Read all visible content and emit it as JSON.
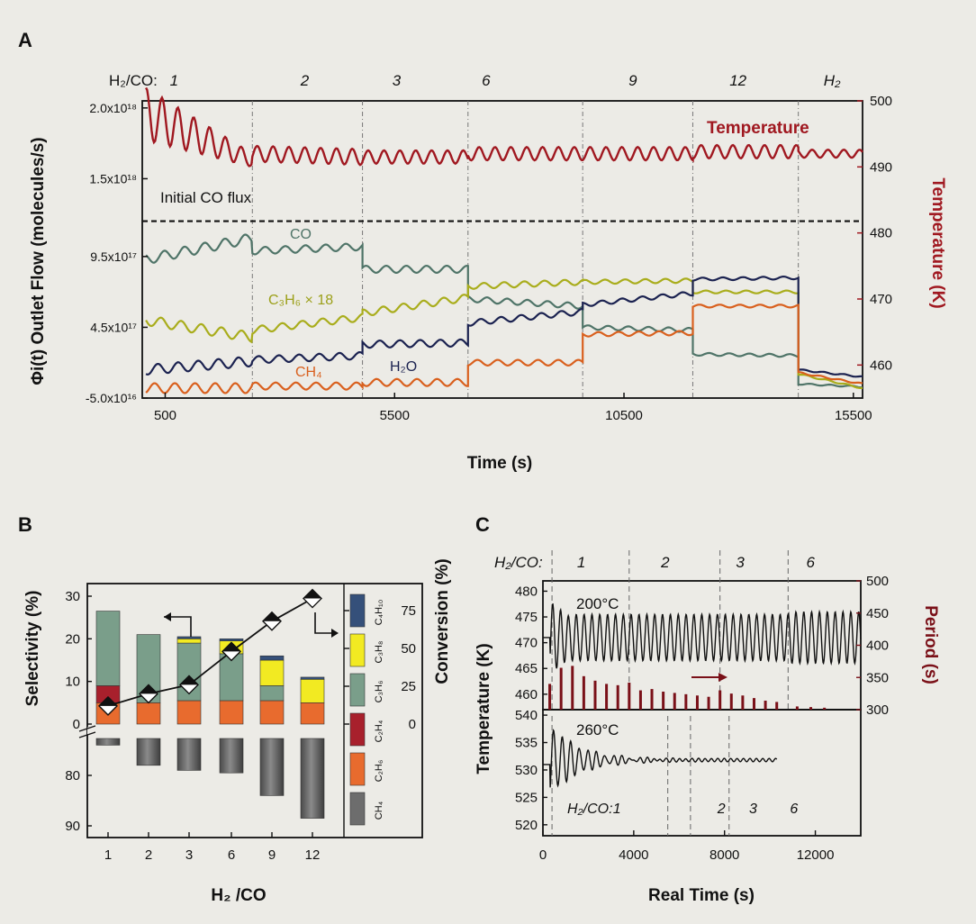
{
  "panel_labels": {
    "a": "A",
    "b": "B",
    "c": "C"
  },
  "chart_data": [
    {
      "panel": "A",
      "type": "line",
      "xlabel": "Time (s)",
      "ylabel": "Φi(t) Outlet  Flow (molecules/s)",
      "y2label": "Temperature (K)",
      "xlim": [
        0,
        15700
      ],
      "ylim": [
        -5e+16,
        2.05e+18
      ],
      "y2lim": [
        455,
        500
      ],
      "x_ticks": [
        "500",
        "5500",
        "10500",
        "15500"
      ],
      "y_ticks": [
        "2.0x10¹⁸",
        "1.5x10¹⁸",
        "9.5x10¹⁷",
        "4.5x10¹⁷",
        "-5.0x10¹⁶"
      ],
      "y2_ticks": [
        "500",
        "490",
        "480",
        "470",
        "460"
      ],
      "ratio_prefix": "H₂/CO:",
      "ratios": [
        "1",
        "2",
        "3",
        "6",
        "9",
        "12",
        "H₂"
      ],
      "ratio_x": [
        600,
        3450,
        5450,
        7400,
        10600,
        12800,
        14850
      ],
      "switch_times": [
        2400,
        4800,
        7100,
        9600,
        12000,
        14300
      ],
      "initial_flux_label": "Initial CO flux",
      "initial_flux_value": 1.2e+18,
      "series": [
        {
          "name": "Temperature",
          "axis": "right",
          "color": "#a01820",
          "segments": [
            [
              0,
              498,
              491
            ],
            [
              2400,
              492,
              491.5
            ],
            [
              4800,
              491.5,
              491.5
            ],
            [
              7100,
              492,
              492
            ],
            [
              9600,
              492,
              492
            ],
            [
              12000,
              492.3,
              492.3
            ],
            [
              14300,
              492,
              492
            ]
          ]
        },
        {
          "name": "CO",
          "color": "#4f7468",
          "segments": [
            [
              0,
              9.3e+17,
              1.08e+18
            ],
            [
              2400,
              9.9e+17,
              1.02e+18
            ],
            [
              4800,
              8.6e+17,
              8.6e+17
            ],
            [
              7100,
              6.5e+17,
              6e+17
            ],
            [
              9600,
              4.5e+17,
              4.3e+17
            ],
            [
              12000,
              2.6e+17,
              2.5e+17
            ],
            [
              14300,
              5e+16,
              3e+16
            ]
          ]
        },
        {
          "name": "C₃H₆ × 18",
          "color": "#a9ad1c",
          "segments": [
            [
              0,
              5e+17,
              3.8e+17
            ],
            [
              2400,
              4.3e+17,
              5.2e+17
            ],
            [
              4800,
              5.5e+17,
              6.6e+17
            ],
            [
              7100,
              7.4e+17,
              7.7e+17
            ],
            [
              9600,
              7.7e+17,
              7.8e+17
            ],
            [
              12000,
              7e+17,
              7e+17
            ],
            [
              14300,
              1.2e+17,
              2e+16
            ]
          ]
        },
        {
          "name": "H₂O",
          "color": "#1b2250",
          "segments": [
            [
              0,
              1.5e+17,
              2.1e+17
            ],
            [
              2400,
              2.2e+17,
              2.5e+17
            ],
            [
              4800,
              3.3e+17,
              3.4e+17
            ],
            [
              7100,
              4.8e+17,
              5.6e+17
            ],
            [
              9600,
              6.1e+17,
              6.9e+17
            ],
            [
              12000,
              7.9e+17,
              8e+17
            ],
            [
              14300,
              1.5e+17,
              1e+17
            ]
          ]
        },
        {
          "name": "CH₄",
          "color": "#d9601e",
          "segments": [
            [
              0,
              2e+16,
              2e+16
            ],
            [
              2400,
              3.5e+16,
              3.5e+16
            ],
            [
              4800,
              6e+16,
              6e+16
            ],
            [
              7100,
              2e+17,
              2e+17
            ],
            [
              9600,
              4e+17,
              4.1e+17
            ],
            [
              12000,
              6e+17,
              6e+17
            ],
            [
              14300,
              1.3e+17,
              5e+16
            ]
          ]
        }
      ]
    },
    {
      "panel": "B",
      "type": "bar",
      "xlabel": "H₂ /CO",
      "ylabel": "Selectivity (%)",
      "y2label": "Conversion (%)",
      "categories": [
        "1",
        "2",
        "3",
        "6",
        "9",
        "12"
      ],
      "y_ticks_top": [
        "30",
        "20",
        "10",
        "0"
      ],
      "y_ticks_bottom": [
        "80",
        "90"
      ],
      "y2_ticks": [
        "75",
        "50",
        "25",
        "0"
      ],
      "legend": [
        "C₄H₁₀",
        "C₃H₈",
        "C₃H₆",
        "C₂H₄",
        "C₂H₆",
        "CH₄"
      ],
      "stack_colors": [
        "#35507a",
        "#f2ea22",
        "#7a9e8a",
        "#a8202c",
        "#e86b2e",
        "#6d6d6d"
      ],
      "stacks": [
        {
          "C2H6": 5,
          "C2H4": 4,
          "C3H6": 17.5,
          "C3H8": 0,
          "C4H10": 0
        },
        {
          "C2H6": 5,
          "C2H4": 0,
          "C3H6": 16,
          "C3H8": 0,
          "C4H10": 0
        },
        {
          "C2H6": 5.5,
          "C2H4": 0,
          "C3H6": 13.5,
          "C3H8": 1,
          "C4H10": 0.5
        },
        {
          "C2H6": 5.5,
          "C2H4": 0,
          "C3H6": 11,
          "C3H8": 3,
          "C4H10": 0.5
        },
        {
          "C2H6": 5.5,
          "C2H4": 0,
          "C3H6": 3.5,
          "C3H8": 6,
          "C4H10": 1
        },
        {
          "C2H6": 5,
          "C2H4": 0,
          "C3H6": 0,
          "C3H8": 5.5,
          "C4H10": 0.5
        }
      ],
      "ch4": [
        74,
        78,
        79,
        79.5,
        84,
        88.5
      ],
      "conversion": [
        12,
        20,
        26,
        48,
        68,
        83
      ]
    },
    {
      "panel": "C",
      "type": "line",
      "xlabel": "Real Time (s)",
      "ylabel": "Temperature (K)",
      "y2label": "Period (s)",
      "xlim": [
        0,
        14000
      ],
      "x_ticks": [
        "0",
        "4000",
        "8000",
        "12000"
      ],
      "top": {
        "label": "200°C",
        "ratio_prefix": "H₂/CO:",
        "ratios": [
          "1",
          "2",
          "3",
          "6"
        ],
        "ratio_x": [
          500,
          1500,
          5200,
          8500,
          11600
        ],
        "switch_times": [
          400,
          3800,
          7800,
          10800
        ],
        "ylim": [
          457,
          482
        ],
        "y_ticks": [
          "480",
          "475",
          "470",
          "465",
          "460"
        ],
        "y2lim": [
          300,
          500
        ],
        "y2_ticks": [
          "500",
          "450",
          "400",
          "350",
          "300"
        ],
        "period_bars": [
          [
            300,
            340
          ],
          [
            800,
            365
          ],
          [
            1300,
            368
          ],
          [
            1800,
            352
          ],
          [
            2300,
            345
          ],
          [
            2800,
            340
          ],
          [
            3300,
            338
          ],
          [
            3800,
            342
          ],
          [
            4300,
            330
          ],
          [
            4800,
            332
          ],
          [
            5300,
            328
          ],
          [
            5800,
            326
          ],
          [
            6300,
            324
          ],
          [
            6800,
            322
          ],
          [
            7300,
            320
          ],
          [
            7800,
            330
          ],
          [
            8300,
            325
          ],
          [
            8800,
            322
          ],
          [
            9300,
            318
          ],
          [
            9800,
            314
          ],
          [
            10300,
            312
          ],
          [
            11200,
            305
          ],
          [
            11800,
            304
          ],
          [
            12400,
            303
          ]
        ]
      },
      "bottom": {
        "label": "260°C",
        "ratio_prefix": "H₂/CO:",
        "ratios": [
          "1",
          "2",
          "3",
          "6"
        ],
        "ratio_x": [
          1100,
          5700,
          7100,
          8900
        ],
        "switch_times": [
          400,
          5500,
          6500,
          8200
        ],
        "ylim": [
          518,
          541
        ],
        "y_ticks": [
          "540",
          "535",
          "530",
          "525",
          "520"
        ],
        "data_end": 10300
      }
    }
  ]
}
